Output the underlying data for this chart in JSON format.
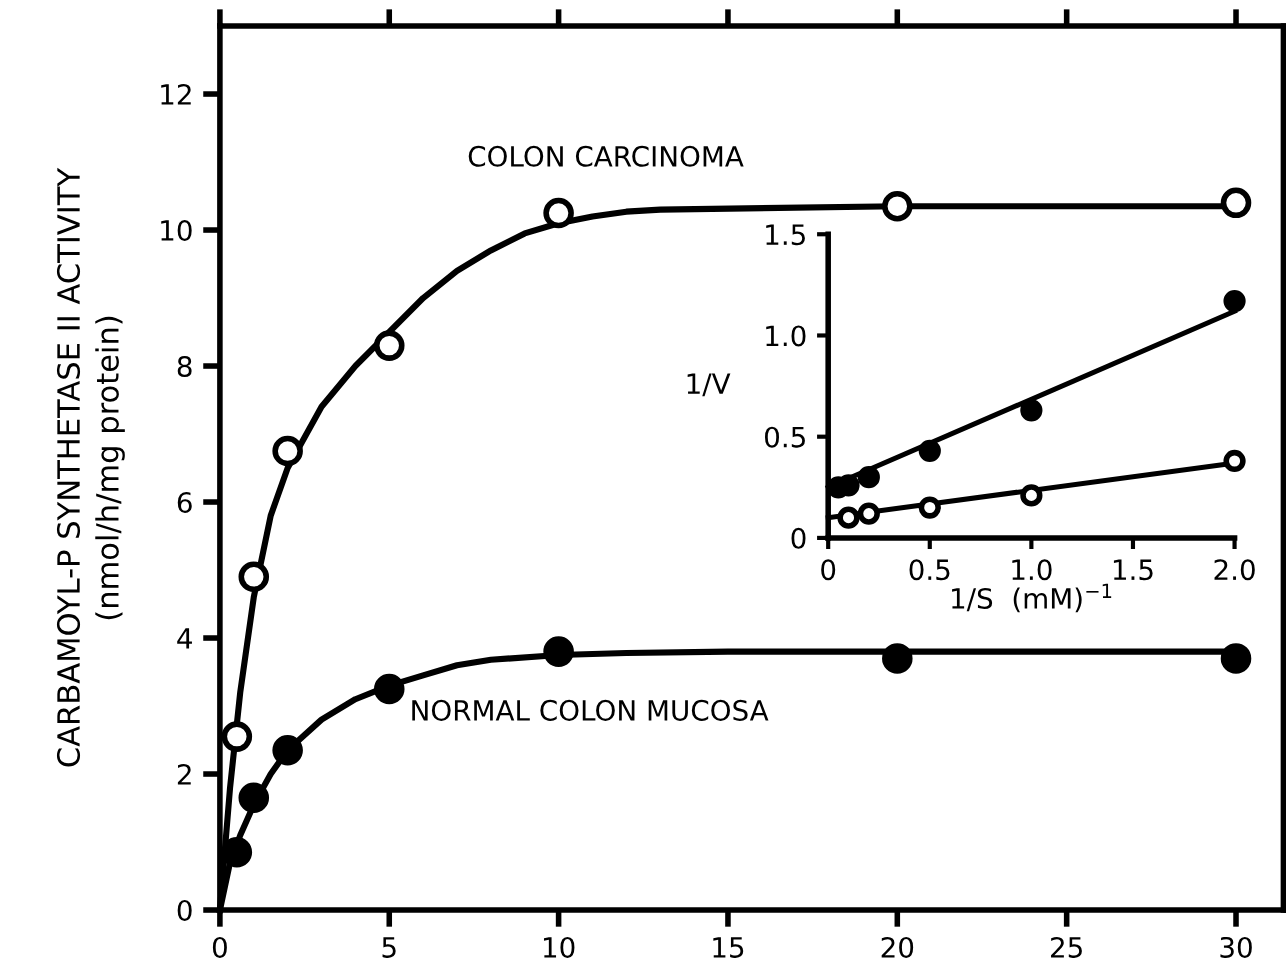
{
  "chart_data": [
    {
      "type": "line",
      "xlabel": null,
      "ylabel": "CARBAMOYL-P SYNTHETASE II ACTIVITY\n(nmol/h/mg protein)",
      "xlim": [
        0,
        31.4
      ],
      "ylim": [
        0,
        13
      ],
      "xticks": [
        0,
        5,
        10,
        15,
        20,
        25,
        30
      ],
      "yticks": [
        0,
        2,
        4,
        6,
        8,
        10,
        12
      ],
      "grid": false,
      "series": [
        {
          "type": "line",
          "color": "#000000",
          "marker": "none",
          "x": [
            0,
            0.3,
            0.6,
            1,
            1.5,
            2,
            3,
            4,
            5,
            6,
            7,
            8,
            9,
            10,
            11,
            12,
            13,
            20,
            30
          ],
          "values": [
            0,
            1.8,
            3.2,
            4.6,
            5.8,
            6.5,
            7.4,
            8.0,
            8.5,
            9.0,
            9.4,
            9.7,
            9.95,
            10.1,
            10.2,
            10.27,
            10.3,
            10.35,
            10.35
          ]
        },
        {
          "type": "line",
          "color": "#000000",
          "marker": "none",
          "x": [
            0,
            0.3,
            0.6,
            1,
            1.5,
            2,
            3,
            4,
            5,
            6,
            7,
            8,
            10,
            12,
            15,
            30
          ],
          "values": [
            0,
            0.7,
            1.1,
            1.55,
            2.0,
            2.35,
            2.8,
            3.1,
            3.3,
            3.45,
            3.6,
            3.68,
            3.75,
            3.78,
            3.8,
            3.8
          ]
        },
        {
          "type": "scatter",
          "name": "COLON CARCINOMA",
          "color": "#ffffff",
          "marker": "circle",
          "x": [
            0.5,
            1,
            2,
            5,
            10,
            20,
            30
          ],
          "values": [
            2.55,
            4.9,
            6.75,
            8.3,
            10.25,
            10.35,
            10.4
          ]
        },
        {
          "type": "scatter",
          "name": "NORMAL COLON MUCOSA",
          "color": "#000000",
          "marker": "circle",
          "x": [
            0.5,
            1,
            2,
            5,
            10,
            20,
            30
          ],
          "values": [
            0.85,
            1.65,
            2.35,
            3.25,
            3.8,
            3.7,
            3.7
          ]
        }
      ]
    },
    {
      "type": "line",
      "xlabel": "1/S  (mM)$^{−1}$",
      "ylabel": "1/V",
      "xlim": [
        0,
        2.0
      ],
      "ylim": [
        0,
        1.5
      ],
      "xticks": [
        0,
        0.5,
        {
          "value": 1,
          "label": "1.0"
        },
        1.5,
        {
          "value": 2,
          "label": "2.0"
        }
      ],
      "yticks": [
        0,
        0.5,
        {
          "value": 1,
          "label": "1.0"
        },
        1.5
      ],
      "grid": false,
      "series": [
        {
          "type": "line",
          "color": "#000000",
          "marker": "none",
          "x": [
            0,
            2
          ],
          "values": [
            0.25,
            1.12
          ]
        },
        {
          "type": "line",
          "color": "#000000",
          "marker": "none",
          "x": [
            0,
            2
          ],
          "values": [
            0.1,
            0.37
          ]
        },
        {
          "type": "scatter",
          "color": "#000000",
          "marker": "circle",
          "x": [
            0.05,
            0.1,
            0.2,
            0.5,
            1.0,
            2.0
          ],
          "values": [
            0.25,
            0.26,
            0.3,
            0.43,
            0.63,
            1.17
          ]
        },
        {
          "type": "scatter",
          "color": "#ffffff",
          "marker": "circle",
          "x": [
            0.1,
            0.2,
            0.5,
            1.0,
            2.0
          ],
          "values": [
            0.1,
            0.12,
            0.15,
            0.21,
            0.38
          ]
        }
      ]
    }
  ]
}
